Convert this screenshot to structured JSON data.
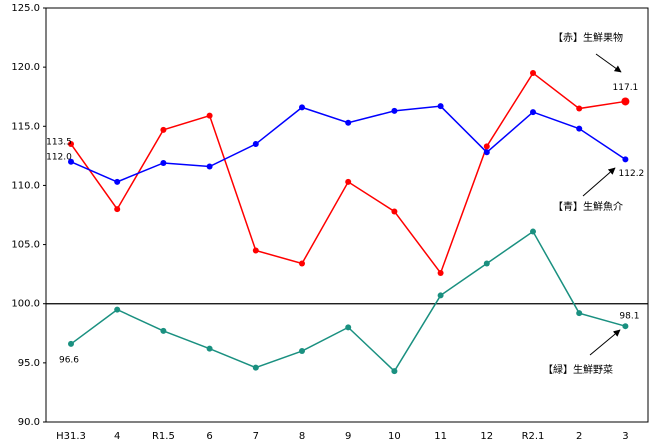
{
  "chart_data": {
    "type": "line",
    "categories": [
      "H31.3",
      "4",
      "R1.5",
      "6",
      "7",
      "8",
      "9",
      "10",
      "11",
      "12",
      "R2.1",
      "2",
      "3"
    ],
    "series": [
      {
        "name": "【赤】生鮮果物",
        "color": "#ff0000",
        "values": [
          113.5,
          108.0,
          114.7,
          115.9,
          104.5,
          103.4,
          110.3,
          107.8,
          102.6,
          113.3,
          119.5,
          116.5,
          117.1
        ],
        "value_labels": [
          "113.5",
          null,
          null,
          null,
          null,
          null,
          null,
          null,
          null,
          null,
          null,
          null,
          "117.1"
        ]
      },
      {
        "name": "【青】生鮮魚介",
        "color": "#0000ff",
        "values": [
          112.0,
          110.3,
          111.9,
          111.6,
          113.5,
          116.6,
          115.3,
          116.3,
          116.7,
          112.8,
          116.2,
          114.8,
          112.2
        ],
        "value_labels": [
          "112.0",
          null,
          null,
          null,
          null,
          null,
          null,
          null,
          null,
          null,
          null,
          null,
          "112.2"
        ]
      },
      {
        "name": "【緑】生鮮野菜",
        "color": "#1a9080",
        "values": [
          96.6,
          99.5,
          97.7,
          96.2,
          94.6,
          96.0,
          98.0,
          94.3,
          100.7,
          103.4,
          106.1,
          99.2,
          98.1
        ],
        "value_labels": [
          "96.6",
          null,
          null,
          null,
          null,
          null,
          null,
          null,
          null,
          null,
          null,
          null,
          "98.1"
        ]
      }
    ],
    "ylim": [
      90,
      125
    ],
    "yticks": [
      {
        "value": 90,
        "label": "90.0"
      },
      {
        "value": 95,
        "label": "95.0"
      },
      {
        "value": 100,
        "label": "100.0"
      },
      {
        "value": 105,
        "label": "105.0"
      },
      {
        "value": 110,
        "label": "110.0"
      },
      {
        "value": 115,
        "label": "115.0"
      },
      {
        "value": 120,
        "label": "120.0"
      },
      {
        "value": 125,
        "label": "125.0"
      }
    ],
    "hline": 100
  }
}
